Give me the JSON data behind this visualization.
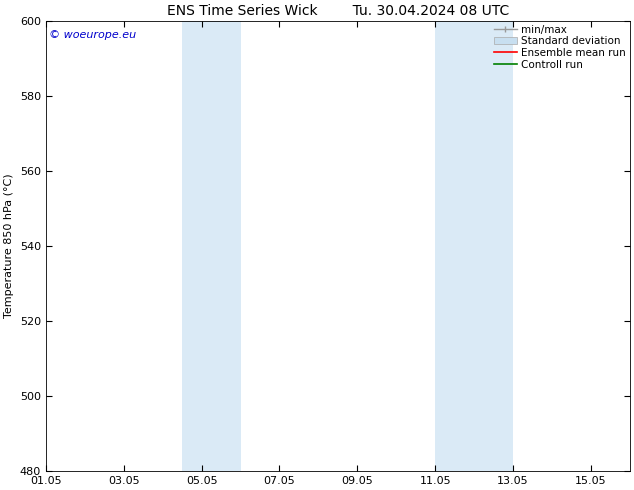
{
  "title_left": "ENS Time Series Wick",
  "title_right": "Tu. 30.04.2024 08 UTC",
  "ylabel": "Temperature 850 hPa (°C)",
  "ylim": [
    480,
    600
  ],
  "yticks": [
    480,
    500,
    520,
    540,
    560,
    580,
    600
  ],
  "xtick_labels": [
    "01.05",
    "03.05",
    "05.05",
    "07.05",
    "09.05",
    "11.05",
    "13.05",
    "15.05"
  ],
  "xtick_days": [
    1,
    3,
    5,
    7,
    9,
    11,
    13,
    15
  ],
  "xstart_day": 1,
  "xend_day": 16,
  "shaded_bands": [
    {
      "xstart_day": 4.5,
      "xend_day": 6.0
    },
    {
      "xstart_day": 11.0,
      "xend_day": 13.0
    }
  ],
  "band_color": "#daeaf6",
  "background_color": "#ffffff",
  "copyright_text": "© woeurope.eu",
  "copyright_color": "#0000cc",
  "legend_items": [
    {
      "label": "min/max",
      "color": "#999999",
      "lw": 1.0,
      "style": "minmax"
    },
    {
      "label": "Standard deviation",
      "color": "#c8dff0",
      "lw": 6,
      "style": "band"
    },
    {
      "label": "Ensemble mean run",
      "color": "#ff0000",
      "lw": 1.2,
      "style": "line"
    },
    {
      "label": "Controll run",
      "color": "#008000",
      "lw": 1.2,
      "style": "line"
    }
  ],
  "title_fontsize": 10,
  "tick_fontsize": 8,
  "ylabel_fontsize": 8,
  "legend_fontsize": 7.5,
  "copyright_fontsize": 8
}
